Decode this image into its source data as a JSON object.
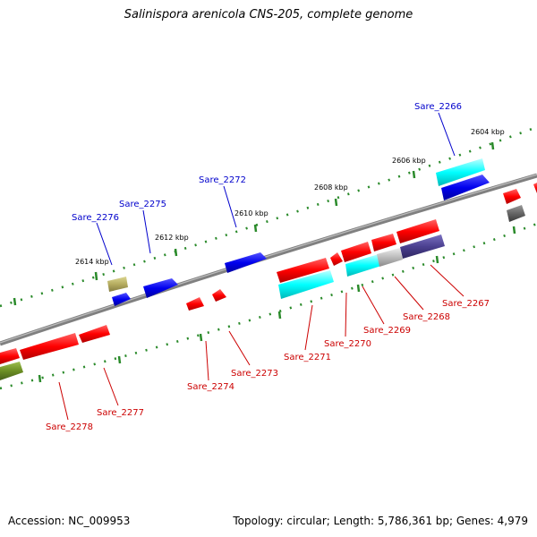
{
  "title": "Salinispora arenicola CNS-205, complete genome",
  "footer": {
    "accession": "Accession: NC_009953",
    "topology": "Topology: circular; Length: 5,786,361 bp; Genes: 4,979"
  },
  "scale_labels": [
    "2614 kbp",
    "2612 kbp",
    "2610 kbp",
    "2608 kbp",
    "2606 kbp",
    "2604 kbp"
  ],
  "genes_top": [
    "Sare_2276",
    "Sare_2275",
    "Sare_2272",
    "Sare_2266"
  ],
  "genes_bottom": [
    "Sare_2278",
    "Sare_2277",
    "Sare_2274",
    "Sare_2273",
    "Sare_2271",
    "Sare_2270",
    "Sare_2269",
    "Sare_2268",
    "Sare_2267"
  ],
  "colors": {
    "forward_label": "#0000cc",
    "reverse_label": "#cc0000",
    "backbone": "#808080",
    "ticks": "#2a8a2a",
    "red": "#ff0000",
    "blue": "#0000ee",
    "cyan": "#00ffff",
    "olive": "#6b8e23",
    "khaki": "#b5ac60",
    "navy": "#4b4090",
    "gray": "#bbbbbb",
    "darkgray": "#666666"
  }
}
